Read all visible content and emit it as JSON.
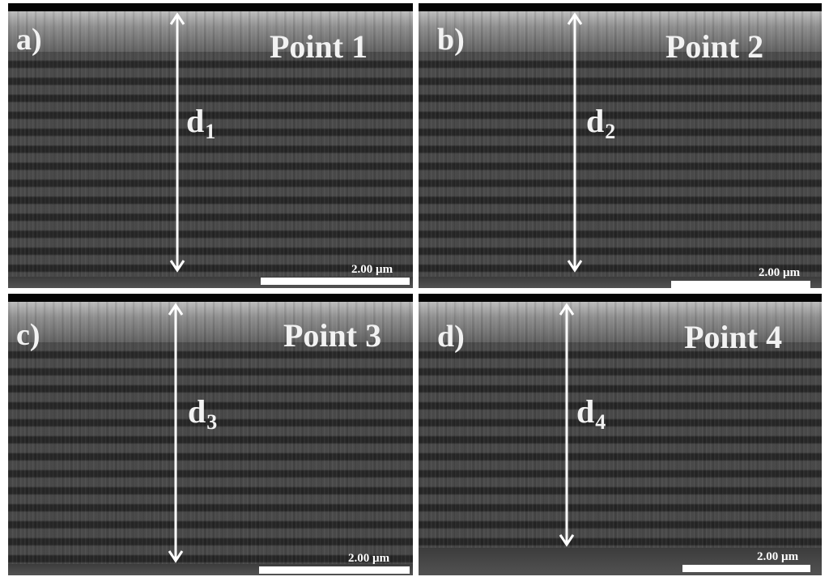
{
  "panels": [
    {
      "letter": "a)",
      "title": "Point 1",
      "d": "d",
      "sub": "1",
      "scale": "2.00 µm"
    },
    {
      "letter": "b)",
      "title": "Point 2",
      "d": "d",
      "sub": "2",
      "scale": "2.00 µm"
    },
    {
      "letter": "c)",
      "title": "Point 3",
      "d": "d",
      "sub": "3",
      "scale": "2.00 µm"
    },
    {
      "letter": "d)",
      "title": "Point 4",
      "d": "d",
      "sub": "4",
      "scale": "2.00 µm"
    }
  ],
  "colors": {
    "background": "#ffffff",
    "annotation": "#f2f2f2"
  }
}
